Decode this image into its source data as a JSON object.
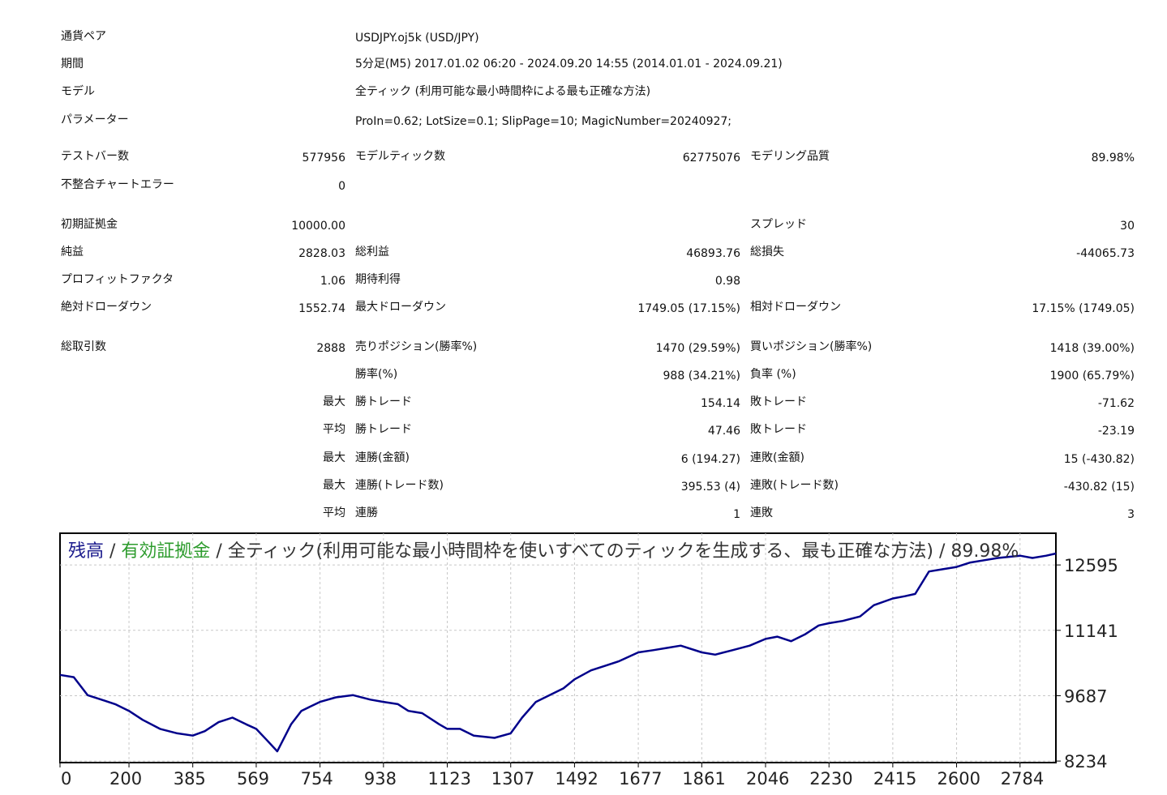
{
  "info": {
    "symbol_label": "通貨ペア",
    "symbol_value": "USDJPY.oj5k (USD/JPY)",
    "period_label": "期間",
    "period_value": "5分足(M5) 2017.01.02 06:20 - 2024.09.20 14:55 (2014.01.01 - 2024.09.21)",
    "model_label": "モデル",
    "model_value": "全ティック (利用可能な最小時間枠による最も正確な方法)",
    "params_label": "パラメーター",
    "params_value": "ProIn=0.62; LotSize=0.1; SlipPage=10; MagicNumber=20240927;"
  },
  "stats": {
    "bars_label": "テストバー数",
    "bars_value": "577956",
    "ticks_label": "モデルティック数",
    "ticks_value": "62775076",
    "quality_label": "モデリング品質",
    "quality_value": "89.98%",
    "mismatch_label": "不整合チャートエラー",
    "mismatch_value": "0",
    "deposit_label": "初期証拠金",
    "deposit_value": "10000.00",
    "spread_label": "スプレッド",
    "spread_value": "30",
    "net_label": "純益",
    "net_value": "2828.03",
    "gross_profit_label": "総利益",
    "gross_profit_value": "46893.76",
    "gross_loss_label": "総損失",
    "gross_loss_value": "-44065.73",
    "pf_label": "プロフィットファクタ",
    "pf_value": "1.06",
    "payoff_label": "期待利得",
    "payoff_value": "0.98",
    "abs_dd_label": "絶対ドローダウン",
    "abs_dd_value": "1552.74",
    "max_dd_label": "最大ドローダウン",
    "max_dd_value": "1749.05 (17.15%)",
    "rel_dd_label": "相対ドローダウン",
    "rel_dd_value": "17.15% (1749.05)",
    "trades_label": "総取引数",
    "trades_value": "2888",
    "short_label": "売りポジション(勝率%)",
    "short_value": "1470 (29.59%)",
    "long_label": "買いポジション(勝率%)",
    "long_value": "1418 (39.00%)",
    "win_rate_label": "勝率(%)",
    "win_rate_value": "988 (34.21%)",
    "loss_rate_label": "負率 (%)",
    "loss_rate_value": "1900 (65.79%)",
    "max_prefix": "最大",
    "avg_prefix": "平均",
    "largest_win_label": "勝トレード",
    "largest_win_value": "154.14",
    "largest_loss_label": "敗トレード",
    "largest_loss_value": "-71.62",
    "avg_win_label": "勝トレード",
    "avg_win_value": "47.46",
    "avg_loss_label": "敗トレード",
    "avg_loss_value": "-23.19",
    "max_consec_win_label": "連勝(金額)",
    "max_consec_win_value": "6 (194.27)",
    "max_consec_loss_label": "連敗(金額)",
    "max_consec_loss_value": "15 (-430.82)",
    "max_consec_profit_label": "連勝(トレード数)",
    "max_consec_profit_value": "395.53 (4)",
    "max_consec_lossamt_label": "連敗(トレード数)",
    "max_consec_lossamt_value": "-430.82 (15)",
    "avg_consec_win_label": "連勝",
    "avg_consec_win_value": "1",
    "avg_consec_loss_label": "連敗",
    "avg_consec_loss_value": "3"
  },
  "chart_data": {
    "type": "line",
    "title_parts": [
      "残高",
      " / ",
      "有効証拠金",
      " / 全ティック(利用可能な最小時間枠を使いすべてのティックを生成する、最も正確な方法) / 89.98%"
    ],
    "title_colors": [
      "#1a1a8c",
      "#333333",
      "#2e9c2e",
      "#333333"
    ],
    "x_ticks": [
      0,
      200,
      385,
      569,
      754,
      938,
      1123,
      1307,
      1492,
      1677,
      1861,
      2046,
      2230,
      2415,
      2600,
      2784
    ],
    "y_ticks": [
      12595,
      11141,
      9687,
      8234
    ],
    "xlim": [
      0,
      2888
    ],
    "ylim": [
      8200,
      13300
    ],
    "grid": true,
    "line_color": "#00008b",
    "series": [
      {
        "x": [
          0,
          40,
          80,
          120,
          160,
          200,
          240,
          290,
          340,
          385,
          420,
          460,
          500,
          540,
          569,
          600,
          630,
          670,
          700,
          754,
          800,
          850,
          900,
          938,
          980,
          1010,
          1050,
          1100,
          1123,
          1160,
          1200,
          1260,
          1307,
          1340,
          1380,
          1420,
          1460,
          1492,
          1540,
          1580,
          1620,
          1677,
          1720,
          1760,
          1800,
          1861,
          1900,
          1950,
          2000,
          2046,
          2080,
          2120,
          2160,
          2200,
          2230,
          2270,
          2320,
          2360,
          2415,
          2450,
          2480,
          2520,
          2560,
          2600,
          2640,
          2680,
          2720,
          2784,
          2820,
          2860,
          2888
        ],
        "y": [
          10150,
          10100,
          9700,
          9600,
          9500,
          9350,
          9150,
          8950,
          8850,
          8800,
          8900,
          9100,
          9200,
          9050,
          8950,
          8700,
          8450,
          9050,
          9350,
          9550,
          9650,
          9700,
          9600,
          9550,
          9500,
          9350,
          9300,
          9050,
          8950,
          8950,
          8800,
          8750,
          8850,
          9200,
          9550,
          9700,
          9850,
          10050,
          10250,
          10350,
          10450,
          10650,
          10700,
          10750,
          10800,
          10650,
          10600,
          10700,
          10800,
          10950,
          11000,
          10900,
          11050,
          11250,
          11300,
          11350,
          11450,
          11700,
          11850,
          11900,
          11950,
          12450,
          12500,
          12550,
          12650,
          12700,
          12750,
          12800,
          12750,
          12800,
          12850
        ]
      }
    ]
  }
}
